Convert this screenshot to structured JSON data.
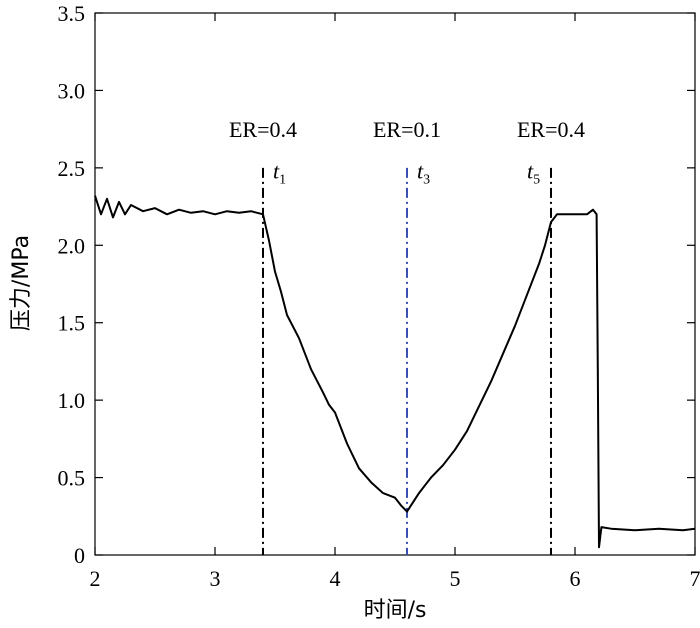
{
  "chart_data": {
    "type": "line",
    "xlabel": "时间/s",
    "ylabel": "压力/MPa",
    "xlim": [
      2,
      7
    ],
    "ylim": [
      0,
      3.5
    ],
    "x_ticks": [
      2,
      3,
      4,
      5,
      6,
      7
    ],
    "y_ticks": [
      0,
      0.5,
      1.0,
      1.5,
      2.0,
      2.5,
      3.0,
      3.5
    ],
    "x_tick_labels": [
      "2",
      "3",
      "4",
      "5",
      "6",
      "7"
    ],
    "y_tick_labels": [
      "0",
      "0.5",
      "1.0",
      "1.5",
      "2.0",
      "2.5",
      "3.0",
      "3.5"
    ],
    "grid": false,
    "series": [
      {
        "color": "#000000",
        "x": [
          2.0,
          2.05,
          2.1,
          2.15,
          2.2,
          2.25,
          2.3,
          2.4,
          2.5,
          2.6,
          2.7,
          2.8,
          2.9,
          3.0,
          3.1,
          3.2,
          3.3,
          3.4,
          3.45,
          3.5,
          3.55,
          3.6,
          3.7,
          3.75,
          3.8,
          3.9,
          3.95,
          4.0,
          4.05,
          4.1,
          4.15,
          4.2,
          4.3,
          4.4,
          4.5,
          4.55,
          4.6,
          4.65,
          4.7,
          4.75,
          4.8,
          4.9,
          5.0,
          5.1,
          5.2,
          5.3,
          5.4,
          5.5,
          5.6,
          5.7,
          5.75,
          5.8,
          5.85,
          5.9,
          6.0,
          6.05,
          6.1,
          6.15,
          6.18,
          6.19,
          6.2,
          6.22,
          6.3,
          6.5,
          6.7,
          6.9,
          7.0
        ],
        "y": [
          2.32,
          2.2,
          2.3,
          2.18,
          2.28,
          2.2,
          2.26,
          2.22,
          2.24,
          2.2,
          2.23,
          2.21,
          2.22,
          2.2,
          2.22,
          2.21,
          2.22,
          2.2,
          2.03,
          1.83,
          1.7,
          1.55,
          1.4,
          1.3,
          1.2,
          1.05,
          0.97,
          0.92,
          0.82,
          0.72,
          0.64,
          0.56,
          0.47,
          0.4,
          0.37,
          0.32,
          0.28,
          0.34,
          0.4,
          0.45,
          0.5,
          0.58,
          0.68,
          0.8,
          0.96,
          1.12,
          1.3,
          1.48,
          1.68,
          1.88,
          2.0,
          2.15,
          2.2,
          2.2,
          2.2,
          2.2,
          2.2,
          2.23,
          2.2,
          1.2,
          0.05,
          0.18,
          0.17,
          0.16,
          0.17,
          0.16,
          0.17
        ]
      }
    ],
    "markers": [
      {
        "x": 3.4,
        "label": "ER=0.4",
        "var": "t",
        "sub": "1",
        "color": "#000000"
      },
      {
        "x": 4.6,
        "label": "ER=0.1",
        "var": "t",
        "sub": "3",
        "color": "#3a4fb0"
      },
      {
        "x": 5.8,
        "label": "ER=0.4",
        "var": "t",
        "sub": "5",
        "color": "#000000"
      }
    ]
  }
}
